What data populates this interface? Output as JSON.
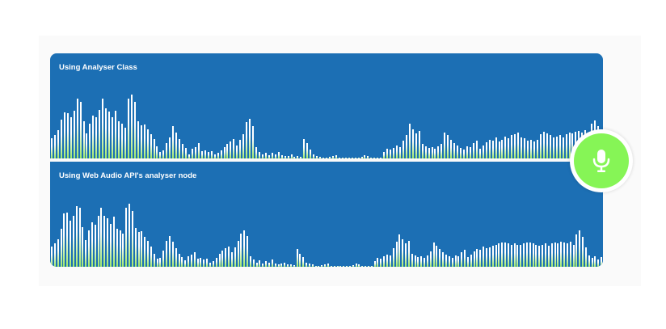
{
  "panels": [
    {
      "title": "Using Analyser Class",
      "levels": [
        0.23,
        0.26,
        0.32,
        0.44,
        0.52,
        0.51,
        0.46,
        0.54,
        0.67,
        0.64,
        0.42,
        0.28,
        0.39,
        0.48,
        0.46,
        0.55,
        0.67,
        0.56,
        0.53,
        0.46,
        0.54,
        0.42,
        0.39,
        0.35,
        0.67,
        0.72,
        0.64,
        0.42,
        0.37,
        0.38,
        0.33,
        0.27,
        0.22,
        0.14,
        0.07,
        0.09,
        0.17,
        0.24,
        0.36,
        0.29,
        0.22,
        0.16,
        0.12,
        0.05,
        0.11,
        0.13,
        0.17,
        0.08,
        0.09,
        0.07,
        0.08,
        0.05,
        0.06,
        0.09,
        0.13,
        0.16,
        0.19,
        0.22,
        0.15,
        0.21,
        0.27,
        0.41,
        0.45,
        0.36,
        0.13,
        0.07,
        0.05,
        0.06,
        0.04,
        0.06,
        0.05,
        0.07,
        0.04,
        0.03,
        0.03,
        0.05,
        0.02,
        0.03,
        0.02,
        0.22,
        0.17,
        0.1,
        0.05,
        0.03,
        0.02,
        0.01,
        0.0,
        0.02,
        0.03,
        0.04,
        0.01,
        0.0,
        0.0,
        0.0,
        0.0,
        0.0,
        0.0,
        0.02,
        0.04,
        0.03,
        0.0,
        0.0,
        0.0,
        0.0,
        0.07,
        0.11,
        0.1,
        0.12,
        0.15,
        0.13,
        0.2,
        0.26,
        0.39,
        0.33,
        0.28,
        0.31,
        0.16,
        0.14,
        0.12,
        0.13,
        0.11,
        0.14,
        0.16,
        0.29,
        0.26,
        0.21,
        0.17,
        0.15,
        0.12,
        0.1,
        0.14,
        0.13,
        0.17,
        0.2,
        0.11,
        0.15,
        0.18,
        0.21,
        0.2,
        0.24,
        0.19,
        0.21,
        0.25,
        0.23,
        0.26,
        0.27,
        0.29,
        0.24,
        0.23,
        0.2,
        0.21,
        0.19,
        0.21,
        0.27,
        0.3,
        0.28,
        0.26,
        0.24,
        0.25,
        0.26,
        0.24,
        0.27,
        0.29,
        0.28,
        0.3,
        0.31,
        0.29,
        0.32,
        0.27,
        0.39,
        0.43,
        0.36,
        0.28
      ]
    },
    {
      "title": "Using Web Audio API's analyser node",
      "levels": [
        0.23,
        0.26,
        0.31,
        0.43,
        0.6,
        0.61,
        0.52,
        0.57,
        0.68,
        0.66,
        0.45,
        0.3,
        0.41,
        0.5,
        0.47,
        0.57,
        0.66,
        0.57,
        0.55,
        0.48,
        0.56,
        0.43,
        0.41,
        0.37,
        0.66,
        0.71,
        0.63,
        0.44,
        0.39,
        0.4,
        0.34,
        0.29,
        0.23,
        0.15,
        0.09,
        0.1,
        0.18,
        0.29,
        0.35,
        0.28,
        0.21,
        0.15,
        0.11,
        0.07,
        0.12,
        0.14,
        0.16,
        0.09,
        0.1,
        0.08,
        0.09,
        0.05,
        0.06,
        0.1,
        0.15,
        0.18,
        0.21,
        0.23,
        0.16,
        0.22,
        0.29,
        0.37,
        0.41,
        0.35,
        0.12,
        0.08,
        0.05,
        0.07,
        0.04,
        0.06,
        0.05,
        0.08,
        0.04,
        0.03,
        0.04,
        0.05,
        0.03,
        0.03,
        0.02,
        0.2,
        0.15,
        0.11,
        0.05,
        0.04,
        0.03,
        0.01,
        0.0,
        0.02,
        0.03,
        0.04,
        0.01,
        0.0,
        0.0,
        0.01,
        0.0,
        0.0,
        0.0,
        0.02,
        0.04,
        0.03,
        0.0,
        0.0,
        0.0,
        0.01,
        0.06,
        0.1,
        0.09,
        0.12,
        0.14,
        0.13,
        0.21,
        0.28,
        0.36,
        0.31,
        0.26,
        0.29,
        0.15,
        0.13,
        0.11,
        0.12,
        0.1,
        0.13,
        0.17,
        0.27,
        0.24,
        0.2,
        0.16,
        0.14,
        0.12,
        0.1,
        0.13,
        0.12,
        0.16,
        0.19,
        0.11,
        0.14,
        0.17,
        0.2,
        0.19,
        0.23,
        0.21,
        0.22,
        0.24,
        0.25,
        0.26,
        0.27,
        0.27,
        0.26,
        0.25,
        0.26,
        0.25,
        0.25,
        0.26,
        0.27,
        0.27,
        0.26,
        0.25,
        0.24,
        0.25,
        0.26,
        0.24,
        0.26,
        0.27,
        0.26,
        0.28,
        0.27,
        0.26,
        0.28,
        0.25,
        0.36,
        0.41,
        0.34,
        0.22,
        0.13,
        0.1,
        0.12,
        0.08,
        0.11
      ]
    }
  ],
  "mic": {
    "icon": "microphone-icon"
  },
  "colors": {
    "panel": "#1c6fb4",
    "mic": "#86f556",
    "bar_top": "#ffffff",
    "bar_bottom": "#9ee86a"
  }
}
